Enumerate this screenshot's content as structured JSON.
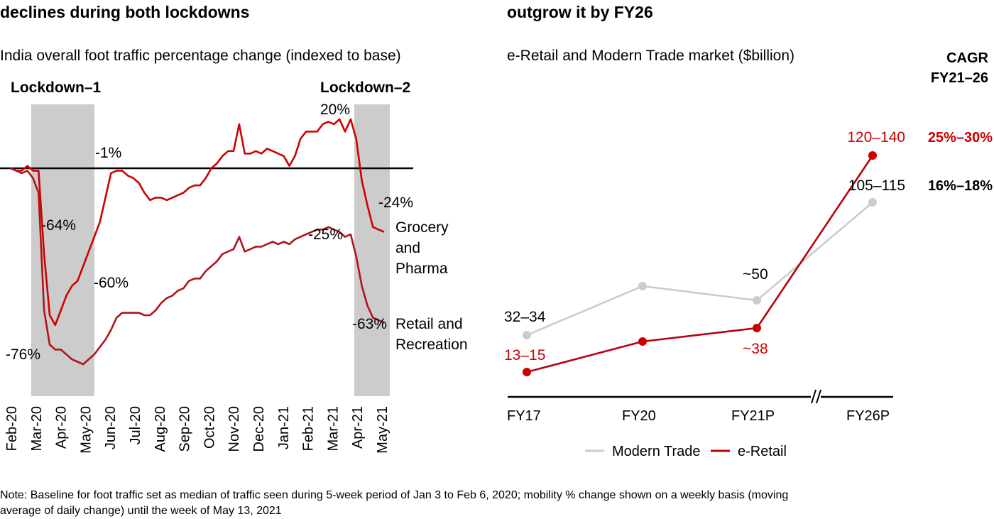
{
  "left_panel": {
    "title": "declines during both lockdowns",
    "subtitle": "India overall foot traffic percentage change (indexed to base)"
  },
  "right_panel": {
    "title": "outgrow it by FY26",
    "subtitle": "e-Retail and Modern Trade market ($billion)",
    "cagr_header_line1": "CAGR",
    "cagr_header_line2": "FY21–26"
  },
  "note_line1": "Note: Baseline for foot traffic set as median of traffic seen during 5-week period of Jan 3 to Feb 6, 2020; mobility % change shown on a weekly basis (moving",
  "note_line2": "average of daily change) until the week of May 13, 2021",
  "colors": {
    "red": "#cc0000",
    "dark_red": "#b0141c",
    "grey_line": "#cccccc",
    "lockdown_shade": "#cccccc",
    "axis": "#000000"
  },
  "chart_data": [
    {
      "type": "line",
      "title": "India overall foot traffic percentage change (indexed to base)",
      "xlabel": "",
      "ylabel": "",
      "ylim": [
        -80,
        25
      ],
      "grid": false,
      "baseline": 0,
      "x_tick_labels": [
        "Feb-20",
        "Mar-20",
        "Apr-20",
        "May-20",
        "Jun-20",
        "Jul-20",
        "Aug-20",
        "Sep-20",
        "Oct-20",
        "Nov-20",
        "Dec-20",
        "Jan-21",
        "Feb-21",
        "Mar-21",
        "Apr-21",
        "May-21"
      ],
      "shaded_regions": [
        {
          "label": "Lockdown–1",
          "start_week": 7,
          "end_week": 24
        },
        {
          "label": "Lockdown–2",
          "start_week": 59,
          "end_week": 68
        }
      ],
      "series": [
        {
          "name": "Grocery and Pharma",
          "label_lines": [
            "Grocery",
            "and",
            "Pharma"
          ],
          "values": [
            0,
            -1,
            -1,
            1,
            -1,
            -1,
            -35,
            -60,
            -64,
            -58,
            -52,
            -48,
            -46,
            -40,
            -34,
            -28,
            -22,
            -12,
            -2,
            -1,
            -1,
            -3,
            -4,
            -6,
            -10,
            -13,
            -12,
            -12,
            -13,
            -12,
            -11,
            -10,
            -8,
            -7,
            -7,
            -4,
            0,
            2,
            5,
            7,
            7,
            18,
            6,
            6,
            7,
            6,
            8,
            7,
            6,
            5,
            1,
            5,
            12,
            15,
            15,
            15,
            18,
            19,
            18,
            20,
            15,
            20,
            12,
            -5,
            -15,
            -24,
            -25,
            -26
          ],
          "annotations": [
            {
              "text": "-1%",
              "week": 19
            },
            {
              "text": "-64%",
              "week": 8
            },
            {
              "text": "20%",
              "week": 61
            },
            {
              "text": "-24%",
              "week": 65
            }
          ]
        },
        {
          "name": "Retail and Recreation",
          "label_lines": [
            "Retail and",
            "Recreation"
          ],
          "values": [
            0,
            -1,
            -2,
            -1,
            -4,
            -10,
            -58,
            -72,
            -74,
            -74,
            -76,
            -78,
            -79,
            -80,
            -78,
            -76,
            -73,
            -70,
            -66,
            -61,
            -59,
            -59,
            -59,
            -59,
            -60,
            -60,
            -58,
            -55,
            -53,
            -52,
            -50,
            -49,
            -46,
            -45,
            -45,
            -42,
            -40,
            -38,
            -35,
            -34,
            -33,
            -28,
            -34,
            -33,
            -32,
            -32,
            -31,
            -30,
            -31,
            -30,
            -31,
            -29,
            -28,
            -27,
            -26,
            -25,
            -25,
            -24,
            -25,
            -26,
            -28,
            -27,
            -36,
            -48,
            -56,
            -61,
            -62,
            -63
          ],
          "annotations": [
            {
              "text": "-76%",
              "week": 11
            },
            {
              "text": "-60%",
              "week": 24
            },
            {
              "text": "-25%",
              "week": 55
            },
            {
              "text": "-63%",
              "week": 66
            }
          ]
        }
      ]
    },
    {
      "type": "line",
      "title": "e-Retail and Modern Trade market ($billion)",
      "xlabel": "",
      "ylabel": "",
      "categories": [
        "FY17",
        "FY20",
        "FY21P",
        "FY26P"
      ],
      "axis_break_between": [
        "FY21P",
        "FY26P"
      ],
      "series": [
        {
          "name": "Modern Trade",
          "values": [
            33,
            55,
            50,
            110
          ],
          "value_labels": [
            "32–34",
            "",
            "~50",
            "105–115"
          ],
          "cagr": "16%–18%"
        },
        {
          "name": "e-Retail",
          "values": [
            14,
            27,
            38,
            130
          ],
          "value_labels": [
            "13–15",
            "",
            "~38",
            "120–140"
          ],
          "cagr": "25%–30%"
        }
      ],
      "legend": {
        "position": "bottom-center",
        "entries": [
          "Modern Trade",
          "e-Retail"
        ]
      }
    }
  ]
}
